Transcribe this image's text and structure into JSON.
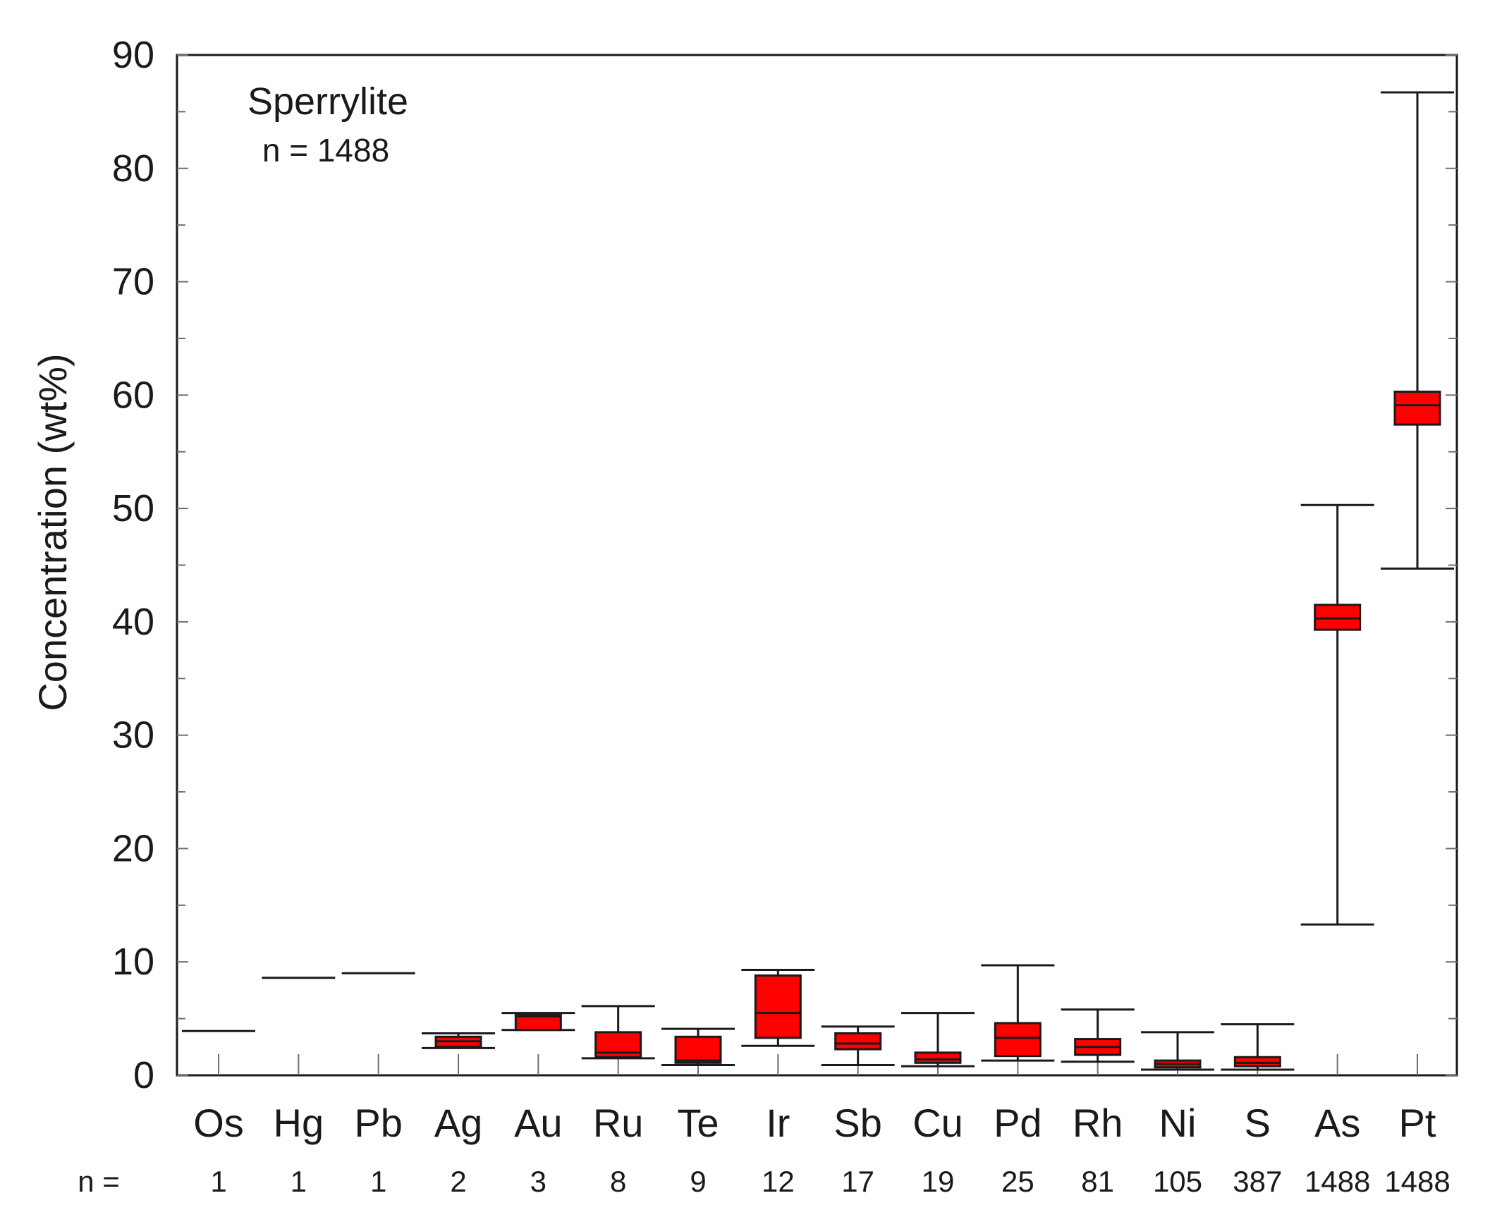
{
  "chart_data": {
    "type": "box",
    "title": "Sperrylite",
    "subtitle": "n = 1488",
    "xlabel": "",
    "ylabel": "Concentration (wt%)",
    "ylim": [
      0,
      90
    ],
    "yticks": [
      0,
      10,
      20,
      30,
      40,
      50,
      60,
      70,
      80,
      90
    ],
    "n_prefix": "n =",
    "box_color": "#ff0000",
    "grid": false,
    "categories": [
      "Os",
      "Hg",
      "Pb",
      "Ag",
      "Au",
      "Ru",
      "Te",
      "Ir",
      "Sb",
      "Cu",
      "Pd",
      "Rh",
      "Ni",
      "S",
      "As",
      "Pt"
    ],
    "n": [
      "1",
      "1",
      "1",
      "2",
      "3",
      "8",
      "9",
      "12",
      "17",
      "19",
      "25",
      "81",
      "105",
      "387",
      "1488",
      "1488"
    ],
    "boxes": [
      {
        "label": "Os",
        "min": 3.9,
        "q1": 3.9,
        "median": 3.9,
        "q3": 3.9,
        "max": 3.9
      },
      {
        "label": "Hg",
        "min": 8.6,
        "q1": 8.6,
        "median": 8.6,
        "q3": 8.6,
        "max": 8.6
      },
      {
        "label": "Pb",
        "min": 9.0,
        "q1": 9.0,
        "median": 9.0,
        "q3": 9.0,
        "max": 9.0
      },
      {
        "label": "Ag",
        "min": 2.4,
        "q1": 2.5,
        "median": 3.0,
        "q3": 3.4,
        "max": 3.7
      },
      {
        "label": "Au",
        "min": 4.0,
        "q1": 4.0,
        "median": 5.2,
        "q3": 5.4,
        "max": 5.5
      },
      {
        "label": "Ru",
        "min": 1.5,
        "q1": 1.6,
        "median": 2.0,
        "q3": 3.8,
        "max": 6.1
      },
      {
        "label": "Te",
        "min": 0.9,
        "q1": 1.1,
        "median": 1.3,
        "q3": 3.4,
        "max": 4.1
      },
      {
        "label": "Ir",
        "min": 2.6,
        "q1": 3.3,
        "median": 5.5,
        "q3": 8.8,
        "max": 9.3
      },
      {
        "label": "Sb",
        "min": 0.9,
        "q1": 2.3,
        "median": 2.8,
        "q3": 3.7,
        "max": 4.3
      },
      {
        "label": "Cu",
        "min": 0.8,
        "q1": 1.1,
        "median": 1.4,
        "q3": 2.0,
        "max": 5.5
      },
      {
        "label": "Pd",
        "min": 1.3,
        "q1": 1.7,
        "median": 3.3,
        "q3": 4.6,
        "max": 9.7
      },
      {
        "label": "Rh",
        "min": 1.2,
        "q1": 1.8,
        "median": 2.5,
        "q3": 3.2,
        "max": 5.8
      },
      {
        "label": "Ni",
        "min": 0.5,
        "q1": 0.7,
        "median": 1.0,
        "q3": 1.3,
        "max": 3.8
      },
      {
        "label": "S",
        "min": 0.5,
        "q1": 0.8,
        "median": 1.1,
        "q3": 1.6,
        "max": 4.5
      },
      {
        "label": "As",
        "min": 13.3,
        "q1": 39.3,
        "median": 40.3,
        "q3": 41.5,
        "max": 50.3
      },
      {
        "label": "Pt",
        "min": 44.7,
        "q1": 57.4,
        "median": 59.1,
        "q3": 60.3,
        "max": 86.7
      }
    ]
  }
}
